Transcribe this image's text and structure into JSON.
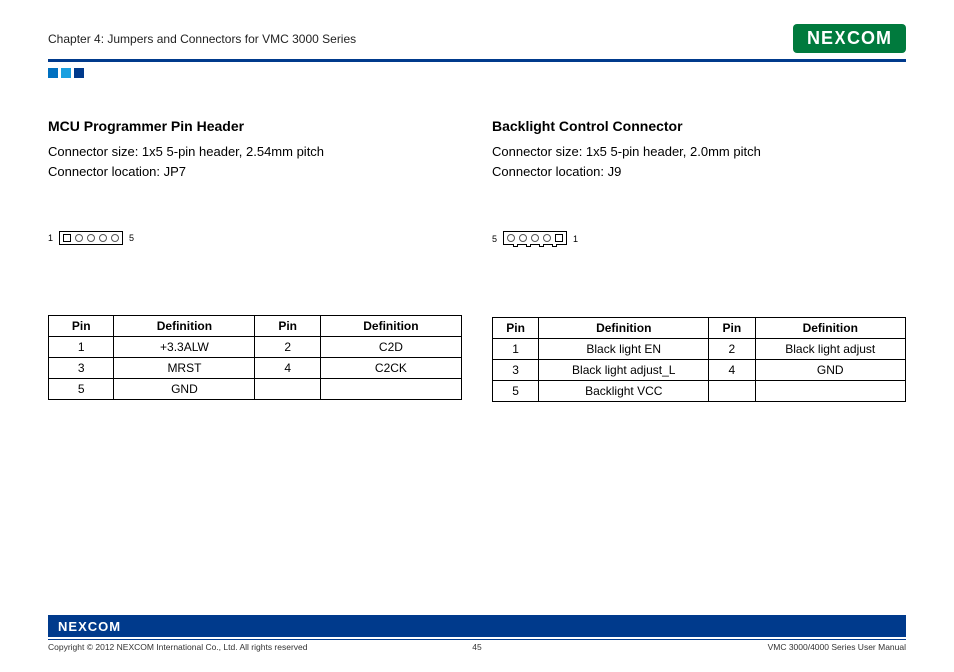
{
  "header": {
    "chapter": "Chapter 4: Jumpers and Connectors for VMC 3000 Series",
    "logo_text": "NEXCOM",
    "rule_color": "#003a8c",
    "squares": [
      "#0070c0",
      "#1aa0e0",
      "#003a8c"
    ]
  },
  "left": {
    "title": "MCU Programmer Pin Header",
    "size_line": "Connector size: 1x5 5-pin header, 2.54mm pitch",
    "loc_line": "Connector location: JP7",
    "diagram": {
      "left_label": "1",
      "right_label": "5",
      "pins": 5,
      "square_pin_index": 0,
      "has_bottom_tabs": false
    },
    "table": {
      "headers": {
        "pin": "Pin",
        "def": "Definition"
      },
      "rows": [
        {
          "p1": "1",
          "d1": "+3.3ALW",
          "p2": "2",
          "d2": "C2D"
        },
        {
          "p1": "3",
          "d1": "MRST",
          "p2": "4",
          "d2": "C2CK"
        },
        {
          "p1": "5",
          "d1": "GND",
          "p2": "",
          "d2": ""
        }
      ]
    }
  },
  "right": {
    "title": "Backlight Control Connector",
    "size_line": "Connector size: 1x5 5-pin header, 2.0mm pitch",
    "loc_line": "Connector location: J9",
    "diagram": {
      "left_label": "5",
      "right_label": "1",
      "pins": 5,
      "square_pin_index": 4,
      "has_bottom_tabs": true
    },
    "table": {
      "headers": {
        "pin": "Pin",
        "def": "Definition"
      },
      "rows": [
        {
          "p1": "1",
          "d1": "Black light EN",
          "p2": "2",
          "d2": "Black light adjust"
        },
        {
          "p1": "3",
          "d1": "Black light adjust_L",
          "p2": "4",
          "d2": "GND"
        },
        {
          "p1": "5",
          "d1": "Backlight VCC",
          "p2": "",
          "d2": ""
        }
      ]
    }
  },
  "footer": {
    "logo_text": "NEXCOM",
    "copyright": "Copyright © 2012 NEXCOM International Co., Ltd. All rights reserved",
    "page_number": "45",
    "manual": "VMC 3000/4000 Series User Manual",
    "bar_color": "#003a8c"
  }
}
